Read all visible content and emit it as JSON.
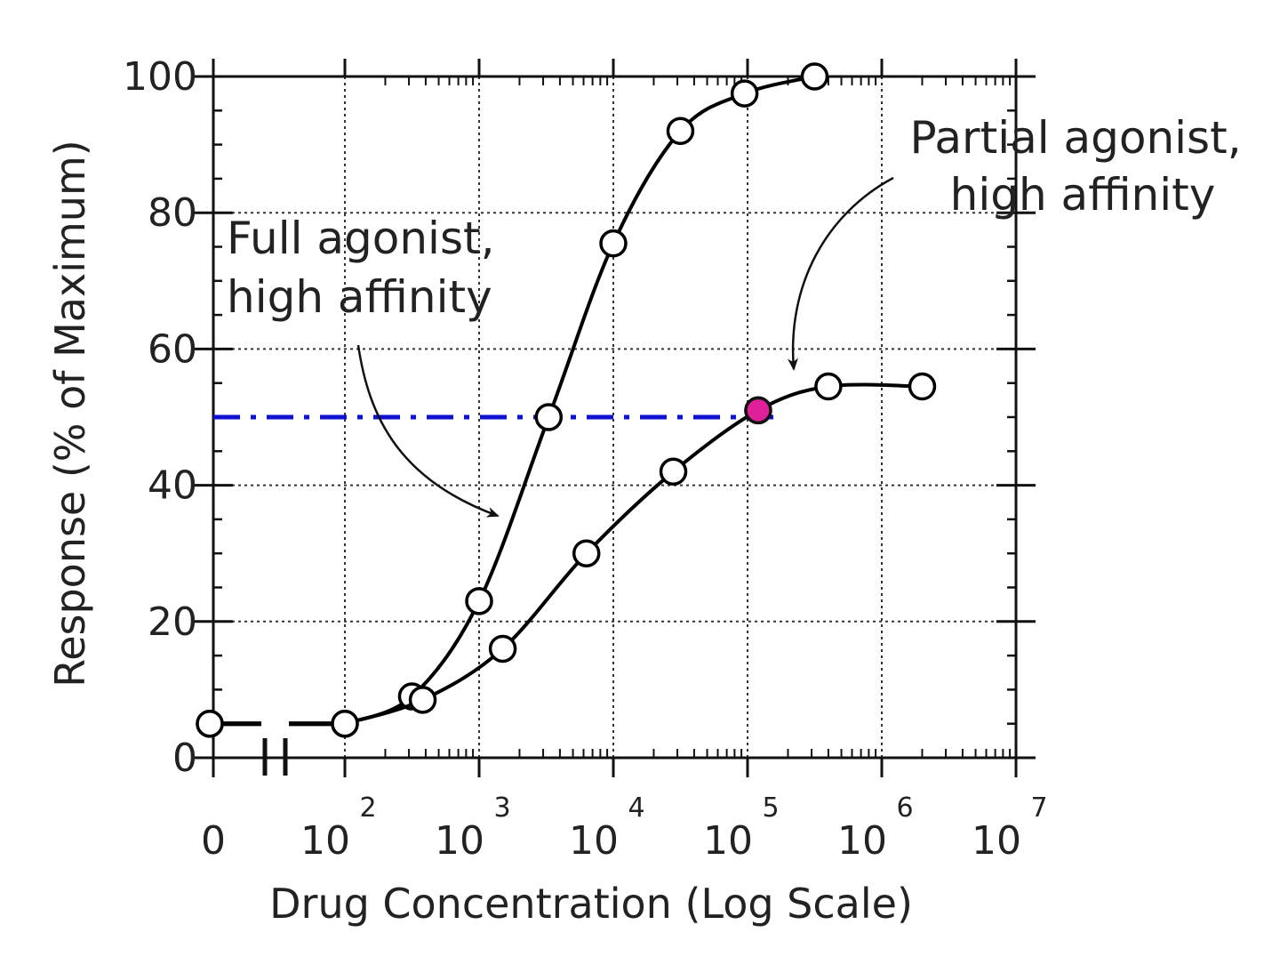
{
  "chart_data": {
    "type": "line",
    "title": "",
    "xlabel": "Drug Concentration (Log Scale)",
    "ylabel": "Response (% of Maximum)",
    "x_scale": "log",
    "x_axis_break": true,
    "x_ticks": [
      {
        "base": "0",
        "exp": ""
      },
      {
        "base": "10",
        "exp": "2"
      },
      {
        "base": "10",
        "exp": "3"
      },
      {
        "base": "10",
        "exp": "4"
      },
      {
        "base": "10",
        "exp": "5"
      },
      {
        "base": "10",
        "exp": "6"
      },
      {
        "base": "10",
        "exp": "7"
      }
    ],
    "y_ticks": [
      "0",
      "20",
      "40",
      "60",
      "80",
      "100"
    ],
    "ylim": [
      0,
      100
    ],
    "xlim": [
      100,
      10000000
    ],
    "grid": true,
    "series": [
      {
        "label": "full",
        "color": "#000000",
        "zero_point": 5,
        "x": [
          100,
          316,
          1000,
          3300,
          10000,
          31600,
          95000,
          316000
        ],
        "y": [
          5,
          9,
          23,
          50,
          75.5,
          92,
          97.5,
          100
        ]
      },
      {
        "label": "partial",
        "color": "#000000",
        "zero_point": 5,
        "x": [
          100,
          380,
          1500,
          6300,
          28000,
          120000,
          400000,
          2000000
        ],
        "y": [
          5,
          8.5,
          16,
          30,
          42,
          51,
          54.5,
          54.5
        ]
      }
    ],
    "highlight_point": {
      "x": 120000,
      "y": 51,
      "color": "#e0209a"
    },
    "reference_line": {
      "y": 50,
      "color": "#1010d0",
      "style": "dash-dot"
    },
    "annotations": [
      {
        "lines": [
          "Full agonist,",
          "high affinity"
        ],
        "points_to": "full"
      },
      {
        "lines": [
          "Partial agonist,",
          "high affinity"
        ],
        "points_to": "partial"
      }
    ]
  }
}
